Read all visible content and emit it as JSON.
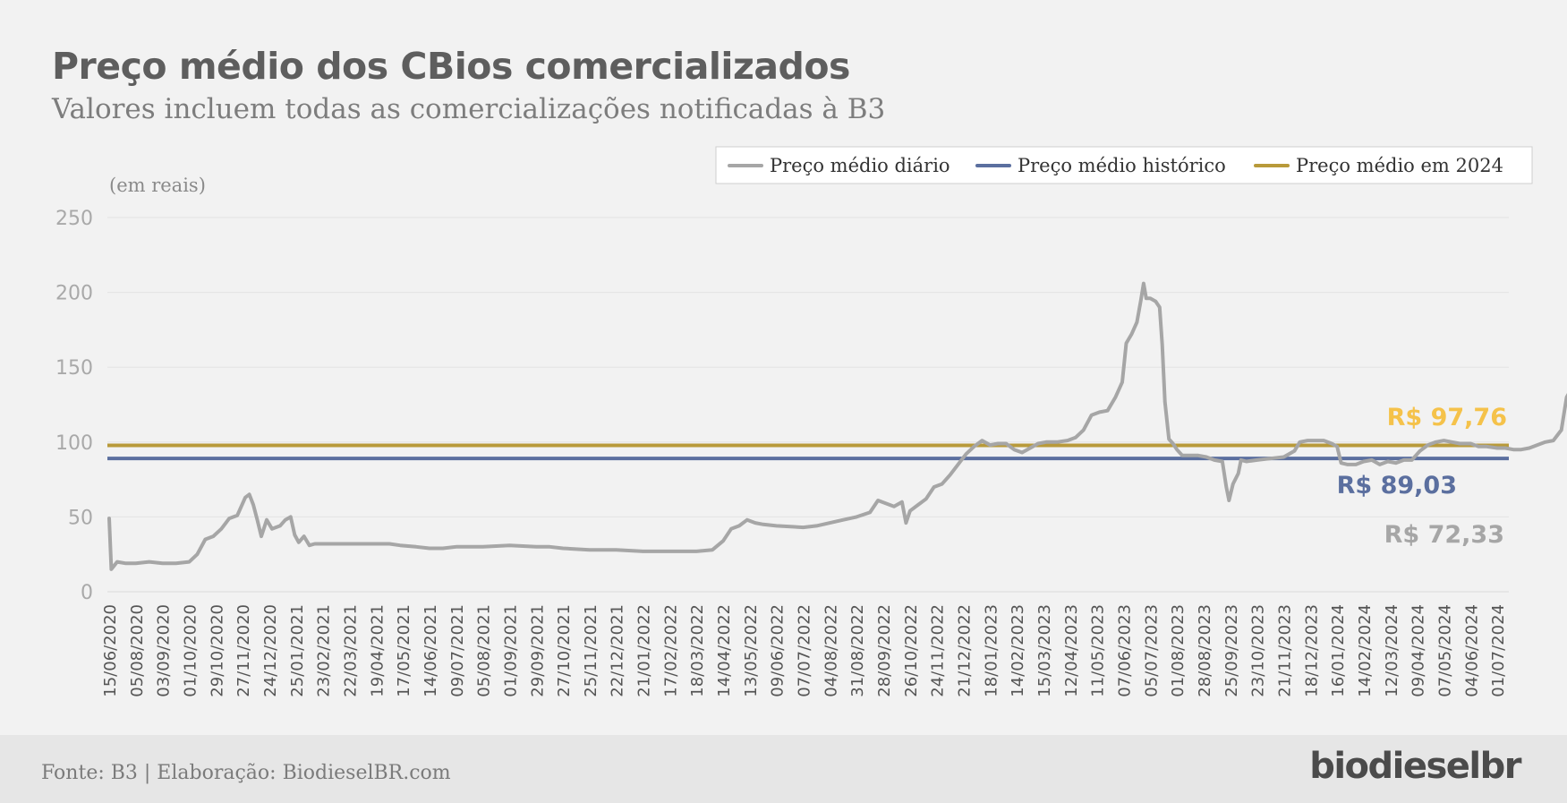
{
  "header": {
    "title": "Preço médio dos CBios comercializados",
    "subtitle": "Valores incluem todas as comercializações notificadas à B3"
  },
  "footer": {
    "source": "Fonte: B3 | Elaboração: BiodieselBR.com",
    "brand": "biodieselbr"
  },
  "colors": {
    "daily": "#a6a6a6",
    "historical": "#5b6f9f",
    "avg2024": "#b89a3a",
    "label2024": "#f5c24a",
    "labelHistorical": "#5b6f9f",
    "labelDaily": "#a6a6a6"
  },
  "chart_data": {
    "type": "line",
    "ylabel": "(em reais)",
    "ylim": [
      0,
      250
    ],
    "yticks": [
      0,
      50,
      100,
      150,
      200,
      250
    ],
    "grid": true,
    "legend_position": "top-right",
    "categories": [
      "15/06/2020",
      "05/08/2020",
      "03/09/2020",
      "01/10/2020",
      "29/10/2020",
      "27/11/2020",
      "24/12/2020",
      "25/01/2021",
      "23/02/2021",
      "22/03/2021",
      "19/04/2021",
      "17/05/2021",
      "14/06/2021",
      "09/07/2021",
      "05/08/2021",
      "01/09/2021",
      "29/09/2021",
      "27/10/2021",
      "25/11/2021",
      "22/12/2021",
      "21/01/2022",
      "17/02/2022",
      "18/03/2022",
      "14/04/2022",
      "13/05/2022",
      "09/06/2022",
      "07/07/2022",
      "04/08/2022",
      "31/08/2022",
      "28/09/2022",
      "26/10/2022",
      "24/11/2022",
      "21/12/2022",
      "18/01/2023",
      "14/02/2023",
      "15/03/2023",
      "12/04/2023",
      "11/05/2023",
      "07/06/2023",
      "05/07/2023",
      "01/08/2023",
      "28/08/2023",
      "25/09/2023",
      "23/10/2023",
      "21/11/2023",
      "18/12/2023",
      "16/01/2024",
      "14/02/2024",
      "12/03/2024",
      "09/04/2024",
      "07/05/2024",
      "04/06/2024",
      "01/07/2024"
    ],
    "series": [
      {
        "name": "Preço médio diário",
        "points": [
          [
            0,
            49
          ],
          [
            0.08,
            15
          ],
          [
            0.3,
            20
          ],
          [
            0.6,
            19
          ],
          [
            1,
            19
          ],
          [
            1.5,
            20
          ],
          [
            2,
            19
          ],
          [
            2.5,
            19
          ],
          [
            3,
            20
          ],
          [
            3.3,
            25
          ],
          [
            3.6,
            35
          ],
          [
            3.9,
            37
          ],
          [
            4.2,
            42
          ],
          [
            4.5,
            49
          ],
          [
            4.8,
            51
          ],
          [
            5.1,
            63
          ],
          [
            5.25,
            65
          ],
          [
            5.4,
            58
          ],
          [
            5.55,
            48
          ],
          [
            5.7,
            37
          ],
          [
            5.9,
            48
          ],
          [
            6.1,
            42
          ],
          [
            6.4,
            44
          ],
          [
            6.6,
            48
          ],
          [
            6.8,
            50
          ],
          [
            6.95,
            38
          ],
          [
            7.1,
            33
          ],
          [
            7.3,
            37
          ],
          [
            7.5,
            31
          ],
          [
            7.7,
            32
          ],
          [
            8.5,
            32
          ],
          [
            9,
            32
          ],
          [
            9.5,
            32
          ],
          [
            10,
            32
          ],
          [
            10.5,
            32
          ],
          [
            10.9,
            31
          ],
          [
            11.5,
            30
          ],
          [
            12,
            29
          ],
          [
            12.5,
            29
          ],
          [
            13,
            30
          ],
          [
            14,
            30
          ],
          [
            15,
            31
          ],
          [
            16,
            30
          ],
          [
            16.5,
            30
          ],
          [
            17,
            29
          ],
          [
            18,
            28
          ],
          [
            19,
            28
          ],
          [
            20,
            27
          ],
          [
            21,
            27
          ],
          [
            22,
            27
          ],
          [
            22.6,
            28
          ],
          [
            23,
            34
          ],
          [
            23.3,
            42
          ],
          [
            23.6,
            44
          ],
          [
            23.9,
            48
          ],
          [
            24.2,
            46
          ],
          [
            24.5,
            45
          ],
          [
            25,
            44
          ],
          [
            26,
            43
          ],
          [
            26.5,
            44
          ],
          [
            27,
            46
          ],
          [
            27.5,
            48
          ],
          [
            28,
            50
          ],
          [
            28.5,
            53
          ],
          [
            28.8,
            61
          ],
          [
            29.1,
            59
          ],
          [
            29.4,
            57
          ],
          [
            29.7,
            60
          ],
          [
            29.85,
            46
          ],
          [
            30,
            54
          ],
          [
            30.3,
            58
          ],
          [
            30.6,
            62
          ],
          [
            30.9,
            70
          ],
          [
            31.2,
            72
          ],
          [
            31.5,
            78
          ],
          [
            31.8,
            85
          ],
          [
            32.1,
            92
          ],
          [
            32.4,
            97
          ],
          [
            32.7,
            101
          ],
          [
            33,
            98
          ],
          [
            33.3,
            99
          ],
          [
            33.6,
            99
          ],
          [
            33.9,
            95
          ],
          [
            34.2,
            93
          ],
          [
            34.5,
            96
          ],
          [
            34.8,
            99
          ],
          [
            35.1,
            100
          ],
          [
            35.5,
            100
          ],
          [
            35.9,
            101
          ],
          [
            36.2,
            103
          ],
          [
            36.5,
            108
          ],
          [
            36.8,
            118
          ],
          [
            37.1,
            120
          ],
          [
            37.4,
            121
          ],
          [
            37.7,
            130
          ],
          [
            37.95,
            140
          ],
          [
            38.1,
            166
          ],
          [
            38.3,
            172
          ],
          [
            38.5,
            180
          ],
          [
            38.65,
            195
          ],
          [
            38.75,
            206
          ],
          [
            38.85,
            196
          ],
          [
            39,
            196
          ],
          [
            39.2,
            194
          ],
          [
            39.35,
            190
          ],
          [
            39.45,
            165
          ],
          [
            39.55,
            127
          ],
          [
            39.7,
            102
          ],
          [
            39.85,
            99
          ],
          [
            40,
            95
          ],
          [
            40.2,
            91
          ],
          [
            40.5,
            91
          ],
          [
            40.8,
            91
          ],
          [
            41.1,
            90
          ],
          [
            41.4,
            88
          ],
          [
            41.7,
            87
          ],
          [
            41.85,
            70
          ],
          [
            41.95,
            61
          ],
          [
            42.1,
            72
          ],
          [
            42.3,
            79
          ],
          [
            42.4,
            88
          ],
          [
            42.6,
            87
          ],
          [
            43,
            88
          ],
          [
            43.5,
            89
          ],
          [
            44,
            90
          ],
          [
            44.4,
            94
          ],
          [
            44.6,
            100
          ],
          [
            44.9,
            101
          ],
          [
            45.2,
            101
          ],
          [
            45.5,
            101
          ],
          [
            45.8,
            99
          ],
          [
            46,
            97
          ],
          [
            46.15,
            86
          ],
          [
            46.4,
            85
          ],
          [
            46.7,
            85
          ],
          [
            47,
            87
          ],
          [
            47.3,
            88
          ],
          [
            47.6,
            85
          ],
          [
            47.9,
            87
          ],
          [
            48.2,
            86
          ],
          [
            48.5,
            88
          ],
          [
            48.8,
            88
          ],
          [
            49.1,
            94
          ],
          [
            49.4,
            98
          ],
          [
            49.7,
            100
          ],
          [
            50,
            101
          ],
          [
            50.3,
            100
          ],
          [
            50.6,
            99
          ],
          [
            51,
            99
          ],
          [
            51.3,
            97
          ],
          [
            51.6,
            97
          ],
          [
            52,
            96
          ],
          [
            52.3,
            96
          ],
          [
            52.6,
            95
          ],
          [
            52.9,
            95
          ],
          [
            53.2,
            96
          ],
          [
            53.5,
            98
          ],
          [
            53.8,
            100
          ],
          [
            54.1,
            101
          ],
          [
            54.4,
            108
          ],
          [
            54.6,
            130
          ],
          [
            54.8,
            136
          ],
          [
            55,
            133
          ],
          [
            55.2,
            128
          ],
          [
            55.5,
            129
          ],
          [
            55.8,
            132
          ],
          [
            56.1,
            138
          ],
          [
            56.3,
            145
          ],
          [
            56.5,
            140
          ],
          [
            56.7,
            148
          ],
          [
            56.9,
            147
          ],
          [
            57.1,
            142
          ],
          [
            57.3,
            138
          ],
          [
            57.5,
            136
          ],
          [
            57.65,
            115
          ],
          [
            57.72,
            102
          ],
          [
            57.85,
            135
          ],
          [
            58,
            138
          ],
          [
            58.2,
            132
          ],
          [
            58.4,
            134
          ],
          [
            58.6,
            137
          ],
          [
            58.8,
            136
          ],
          [
            59,
            135
          ],
          [
            59.2,
            128
          ],
          [
            59.4,
            122
          ],
          [
            59.6,
            120
          ],
          [
            59.8,
            122
          ],
          [
            60,
            123
          ],
          [
            60.3,
            124
          ],
          [
            60.6,
            122
          ],
          [
            60.8,
            120
          ],
          [
            61.1,
            118
          ],
          [
            61.3,
            115
          ],
          [
            61.5,
            112
          ],
          [
            61.62,
            100
          ],
          [
            61.75,
            107
          ],
          [
            62,
            108
          ],
          [
            62.2,
            110
          ],
          [
            62.4,
            115
          ],
          [
            62.6,
            118
          ],
          [
            62.8,
            122
          ],
          [
            63,
            124
          ],
          [
            63.3,
            124
          ],
          [
            63.6,
            124
          ],
          [
            63.8,
            120
          ],
          [
            64,
            118
          ],
          [
            64.2,
            110
          ],
          [
            64.4,
            107
          ],
          [
            64.6,
            105
          ],
          [
            64.8,
            100
          ],
          [
            65,
            103
          ],
          [
            65.2,
            107
          ],
          [
            65.4,
            112
          ],
          [
            65.6,
            112
          ],
          [
            65.8,
            115
          ],
          [
            66,
            116
          ],
          [
            66.2,
            113
          ],
          [
            66.5,
            112
          ],
          [
            66.8,
            111
          ],
          [
            67.1,
            110
          ],
          [
            67.4,
            106
          ],
          [
            67.6,
            100
          ],
          [
            67.8,
            100
          ],
          [
            68,
            101
          ],
          [
            68.3,
            100
          ],
          [
            68.6,
            98
          ],
          [
            68.9,
            96
          ],
          [
            69.2,
            98
          ],
          [
            69.4,
            104
          ],
          [
            69.5,
            97
          ],
          [
            69.7,
            99
          ],
          [
            70,
            101
          ],
          [
            70.3,
            100
          ],
          [
            70.6,
            99
          ],
          [
            70.8,
            96
          ],
          [
            71,
            94
          ],
          [
            71.2,
            96
          ],
          [
            71.4,
            97
          ],
          [
            71.6,
            96
          ],
          [
            71.8,
            93
          ],
          [
            72,
            90
          ],
          [
            72.2,
            86
          ],
          [
            72.4,
            82
          ],
          [
            72.6,
            80
          ],
          [
            72.75,
            77
          ],
          [
            72.85,
            60
          ],
          [
            73,
            76
          ],
          [
            73.2,
            82
          ],
          [
            73.4,
            83
          ],
          [
            73.7,
            83
          ],
          [
            74,
            81
          ],
          [
            74.2,
            77
          ],
          [
            74.4,
            76
          ],
          [
            74.6,
            79
          ],
          [
            74.8,
            77
          ],
          [
            75,
            75
          ],
          [
            75.1,
            72.33
          ]
        ]
      },
      {
        "name": "Preço médio histórico",
        "constant": 89.03
      },
      {
        "name": "Preço médio em 2024",
        "constant": 97.76
      }
    ],
    "annotations": [
      {
        "text": "R$ 97,76"
      },
      {
        "text": "R$ 89,03"
      },
      {
        "text": "R$ 72,33"
      }
    ]
  }
}
